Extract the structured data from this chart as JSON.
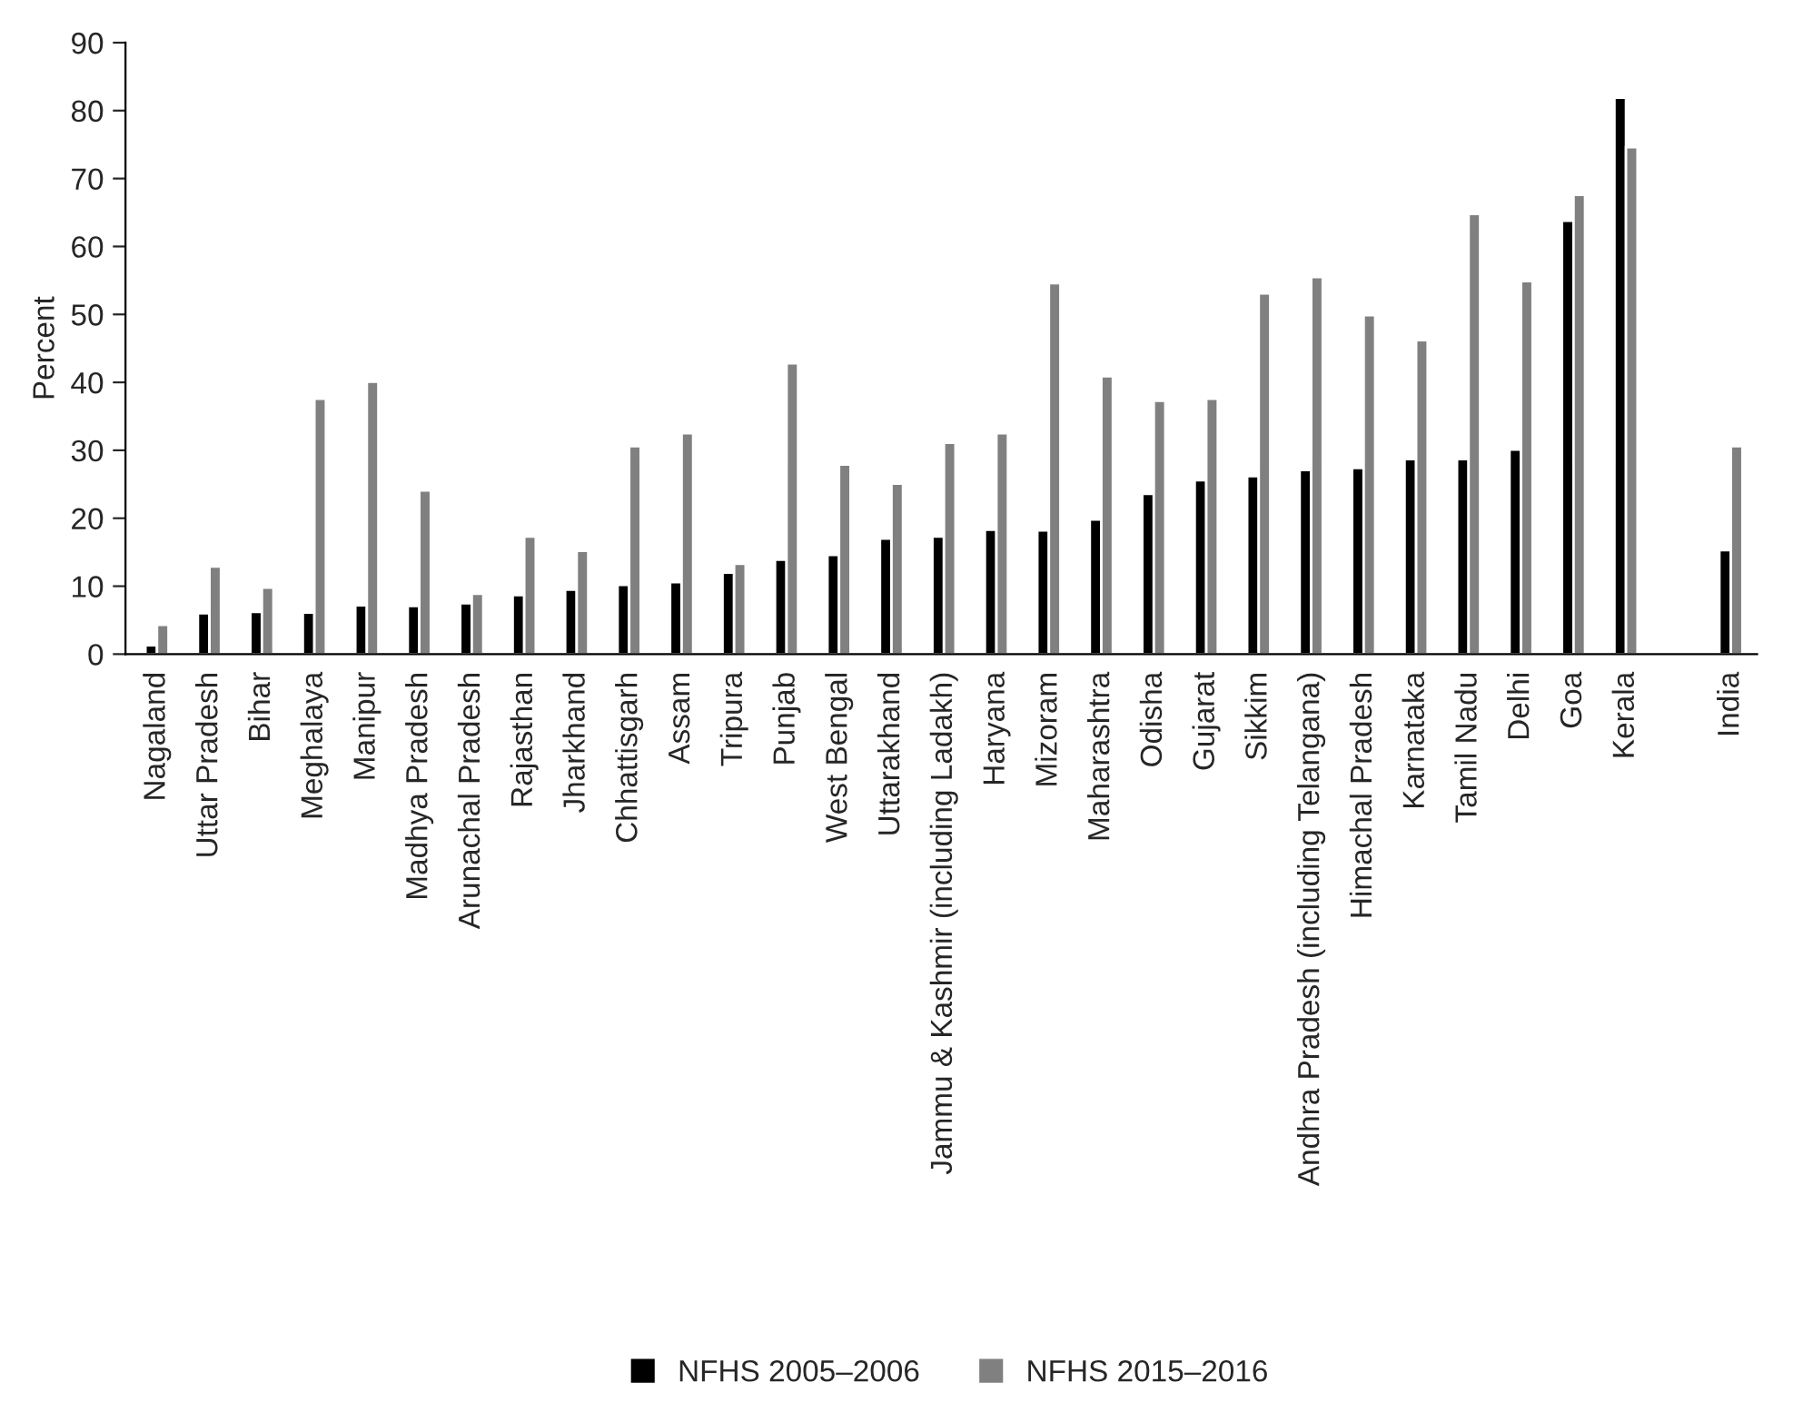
{
  "chart_data": {
    "type": "bar",
    "ylabel": "Percent",
    "categories": [
      "Nagaland",
      "Uttar Pradesh",
      "Bihar",
      "Meghalaya",
      "Manipur",
      "Madhya Pradesh",
      "Arunachal Pradesh",
      "Rajasthan",
      "Jharkhand",
      "Chhattisgarh",
      "Assam",
      "Tripura",
      "Punjab",
      "West Bengal",
      "Uttarakhand",
      "Jammu & Kashmir (including Ladakh)",
      "Haryana",
      "Mizoram",
      "Maharashtra",
      "Odisha",
      "Gujarat",
      "Sikkim",
      "Andhra Pradesh (including Telangana)",
      "Himachal Pradesh",
      "Karnataka",
      "Tamil Nadu",
      "Delhi",
      "Goa",
      "Kerala",
      null,
      "India"
    ],
    "series": [
      {
        "name": "NFHS 2005–2006",
        "color": "#000000",
        "values": [
          1.3,
          6,
          6.2,
          6.1,
          7.2,
          7.1,
          7.5,
          8.7,
          9.5,
          10.2,
          10.6,
          12,
          13.9,
          14.6,
          17,
          17.3,
          18.3,
          18.2,
          19.8,
          23.6,
          25.6,
          26.2,
          27.1,
          27.4,
          28.7,
          28.7,
          30.1,
          63.8,
          81.9,
          null,
          15.3
        ]
      },
      {
        "name": "NFHS 2015–2016",
        "color": "#808080",
        "values": [
          4.3,
          12.9,
          9.8,
          37.6,
          40.1,
          24.1,
          8.9,
          17.3,
          15.2,
          30.6,
          32.5,
          13.3,
          42.8,
          27.9,
          25.1,
          31.1,
          32.5,
          54.6,
          40.9,
          37.3,
          37.6,
          53.1,
          55.5,
          49.9,
          46.2,
          64.8,
          54.9,
          67.6,
          74.6,
          null,
          30.6
        ]
      }
    ],
    "ylim": [
      0,
      90
    ],
    "yticks": [
      0,
      10,
      20,
      30,
      40,
      50,
      60,
      70,
      80,
      90
    ],
    "grid": false,
    "legend": "bottom"
  }
}
